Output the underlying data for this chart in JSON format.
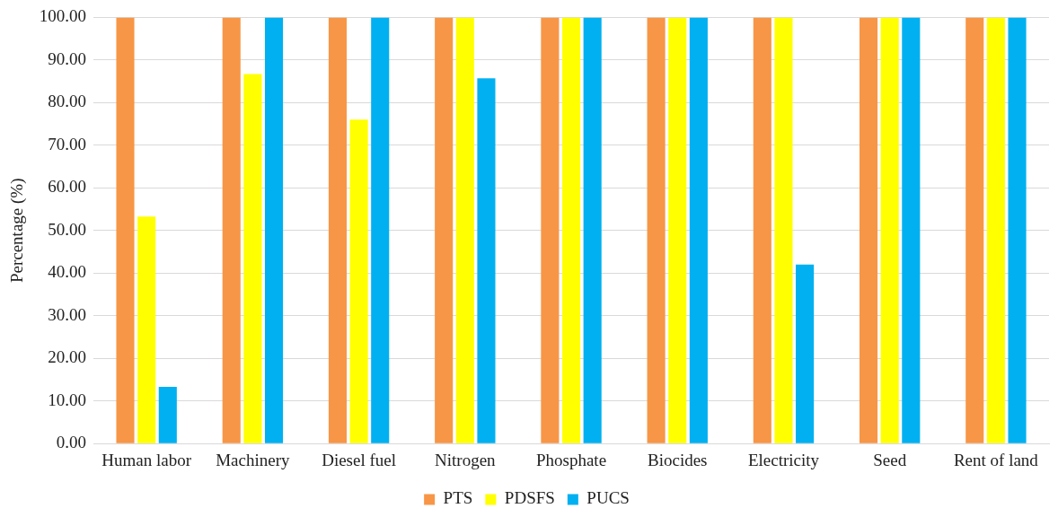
{
  "chart_data": {
    "type": "bar",
    "ylabel": "Percentage (%)",
    "categories": [
      "Human labor",
      "Machinery",
      "Diesel fuel",
      "Nitrogen",
      "Phosphate",
      "Biocides",
      "Electricity",
      "Seed",
      "Rent of land"
    ],
    "series": [
      {
        "name": "PTS",
        "color": "#f79646",
        "values": [
          100,
          100,
          100,
          100,
          100,
          100,
          100,
          100,
          100
        ]
      },
      {
        "name": "PDSFS",
        "color": "#ffff00",
        "values": [
          53.3,
          86.7,
          76,
          100,
          100,
          100,
          100,
          100,
          100
        ]
      },
      {
        "name": "PUCS",
        "color": "#00b0f0",
        "values": [
          13.3,
          100,
          100,
          85.7,
          100,
          100,
          42,
          100,
          100
        ]
      }
    ],
    "ylim": [
      0,
      100
    ],
    "yticks": [
      {
        "value": 0,
        "label": "0.00"
      },
      {
        "value": 10,
        "label": "10.00"
      },
      {
        "value": 20,
        "label": "20.00"
      },
      {
        "value": 30,
        "label": "30.00"
      },
      {
        "value": 40,
        "label": "40.00"
      },
      {
        "value": 50,
        "label": "50.00"
      },
      {
        "value": 60,
        "label": "60.00"
      },
      {
        "value": 70,
        "label": "70.00"
      },
      {
        "value": 80,
        "label": "80.00"
      },
      {
        "value": 90,
        "label": "90.00"
      },
      {
        "value": 100,
        "label": "100.00"
      }
    ],
    "grid": "y",
    "legend": "bottom"
  }
}
